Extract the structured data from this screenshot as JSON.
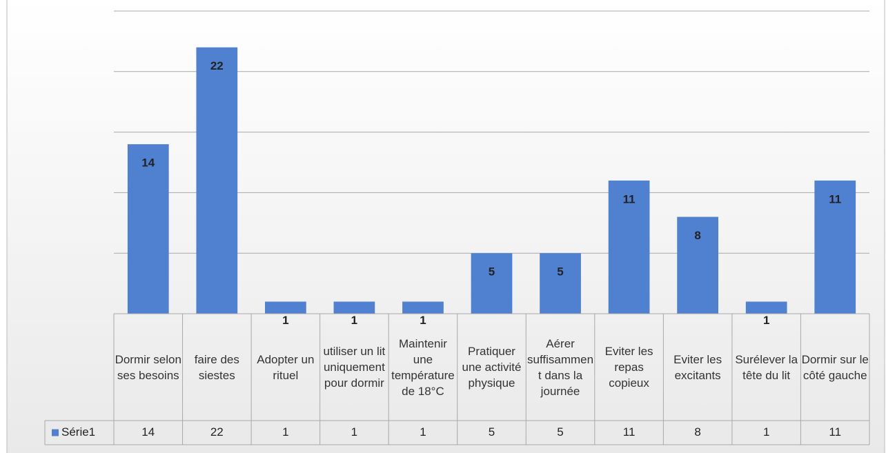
{
  "chart_data": {
    "type": "bar",
    "categories": [
      "Dormir selon ses besoins",
      "faire des siestes",
      "Adopter un rituel",
      "utiliser un lit uniquement pour dormir",
      "Maintenir une température de 18°C",
      "Pratiquer une activité physique",
      "Aérer suffisamment dans la journée",
      "Eviter les repas copieux",
      "Eviter les excitants",
      "Surélever la tête du lit",
      "Dormir sur le côté gauche"
    ],
    "series": [
      {
        "name": "Série1",
        "color": "#5081d0",
        "values": [
          14,
          22,
          1,
          1,
          1,
          5,
          5,
          11,
          8,
          1,
          11
        ]
      }
    ],
    "ylim": [
      0,
      25
    ],
    "yticks": [
      0,
      5,
      10,
      15,
      20,
      25
    ],
    "grid": true,
    "data_table": true
  }
}
